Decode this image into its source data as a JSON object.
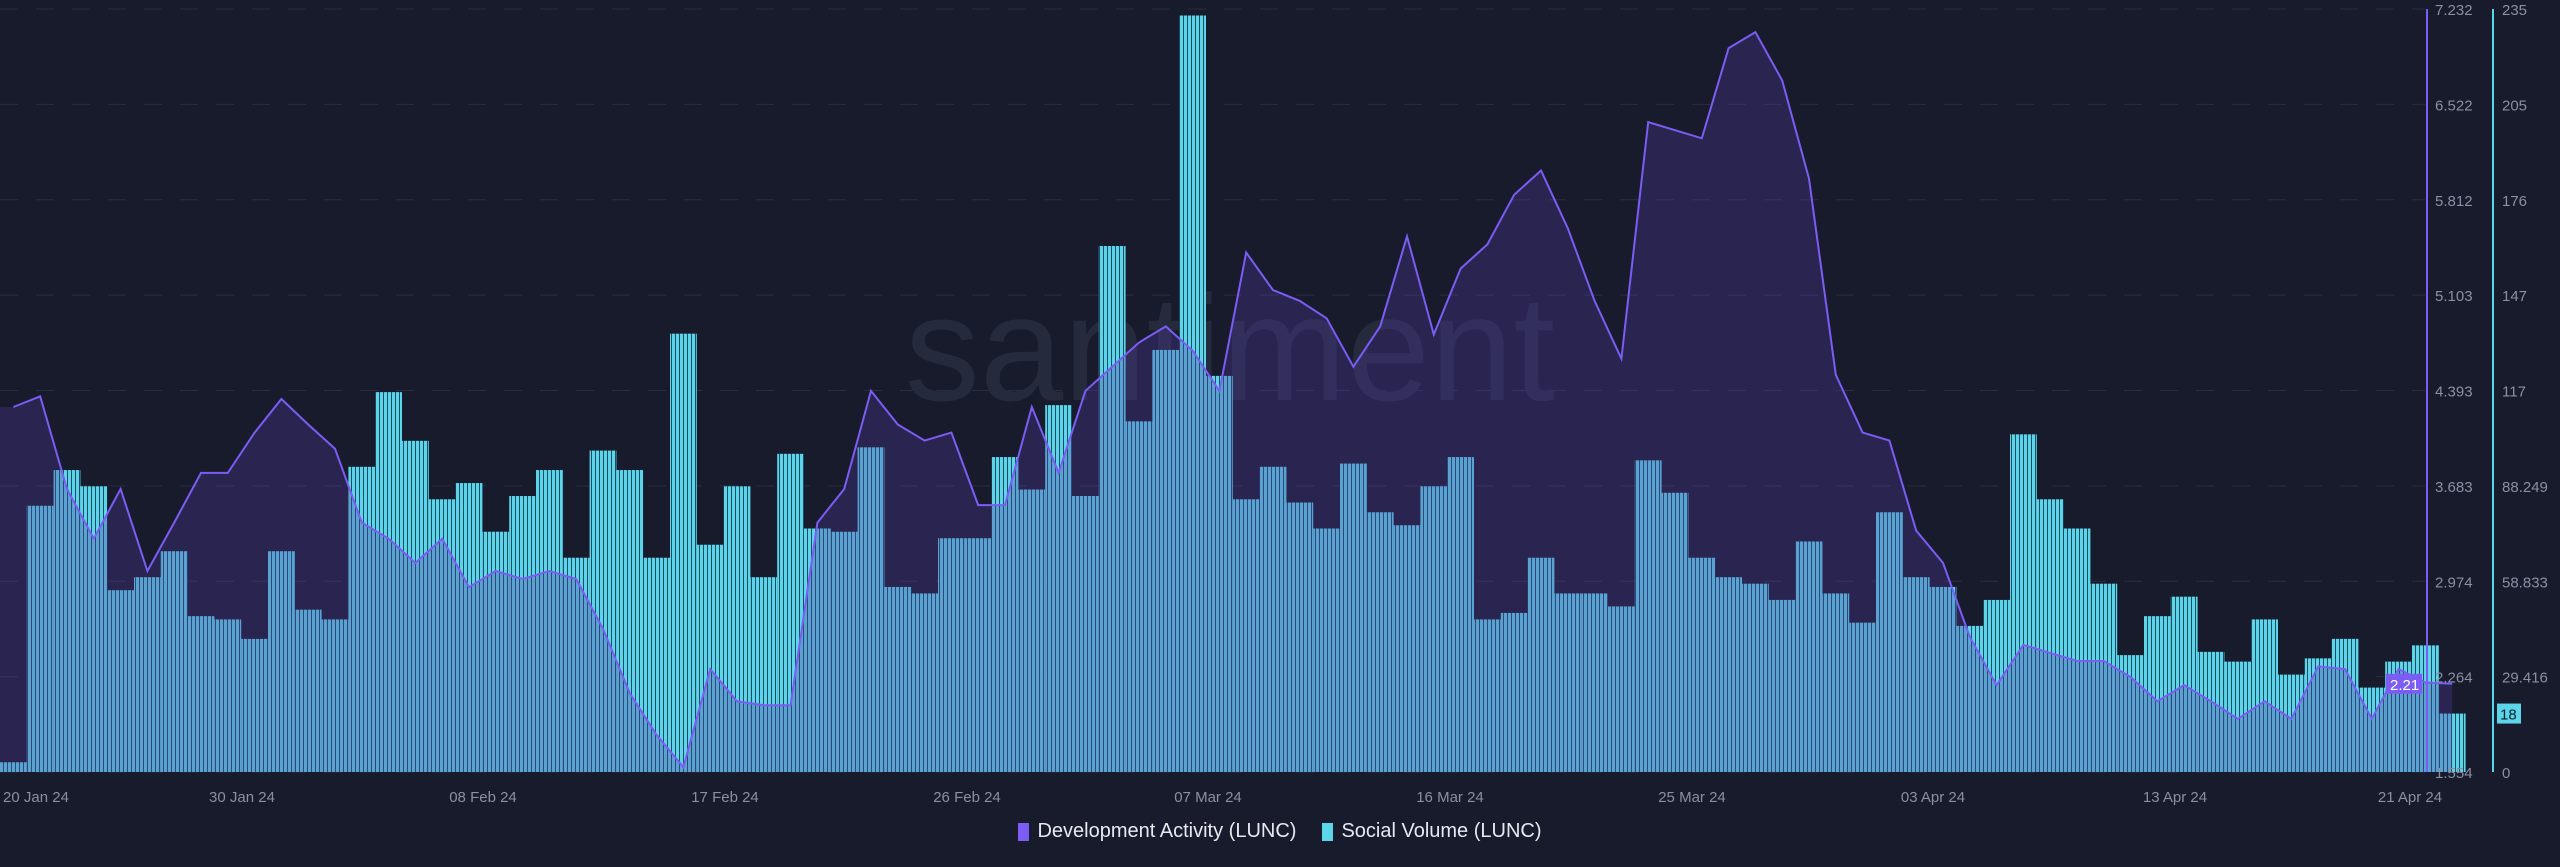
{
  "watermark": "santiment",
  "chart_data": {
    "type": "bar+area",
    "x_tick_labels": [
      "20 Jan 24",
      "30 Jan 24",
      "08 Feb 24",
      "17 Feb 24",
      "26 Feb 24",
      "07 Mar 24",
      "16 Mar 24",
      "25 Mar 24",
      "03 Apr 24",
      "13 Apr 24",
      "21 Apr 24"
    ],
    "y_left": {
      "ticks": [
        "7.232",
        "6.522",
        "5.812",
        "5.103",
        "4.393",
        "3.683",
        "2.974",
        "2.264",
        "1.554"
      ],
      "range": [
        1.554,
        7.232
      ],
      "color": "#7b5cf5"
    },
    "y_right": {
      "ticks": [
        "235",
        "205",
        "176",
        "147",
        "117",
        "88.249",
        "58.833",
        "29.416",
        "0"
      ],
      "range": [
        0,
        235
      ],
      "color": "#5cd4ea"
    },
    "grid": true,
    "legend_placement": "bottom",
    "series": [
      {
        "name": "Development Activity (LUNC)",
        "type": "area",
        "color": "#7b5cf5",
        "axis": "left",
        "last_value": "2.21",
        "values": [
          4.27,
          4.35,
          3.66,
          3.29,
          3.66,
          3.05,
          3.41,
          3.78,
          3.78,
          4.08,
          4.33,
          4.14,
          3.96,
          3.41,
          3.29,
          3.11,
          3.29,
          2.93,
          3.05,
          2.99,
          3.05,
          2.99,
          2.62,
          2.14,
          1.83,
          1.59,
          2.32,
          2.08,
          2.05,
          2.05,
          3.41,
          3.66,
          4.39,
          4.14,
          4.02,
          4.08,
          3.54,
          3.54,
          4.27,
          3.78,
          4.39,
          4.57,
          4.75,
          4.87,
          4.69,
          4.39,
          5.42,
          5.14,
          5.06,
          4.93,
          4.57,
          4.87,
          5.54,
          4.81,
          5.3,
          5.48,
          5.85,
          6.03,
          5.6,
          5.06,
          4.63,
          6.39,
          6.33,
          6.27,
          6.94,
          7.06,
          6.7,
          5.97,
          4.51,
          4.08,
          4.02,
          3.35,
          3.11,
          2.56,
          2.2,
          2.5,
          2.44,
          2.38,
          2.38,
          2.26,
          2.08,
          2.2,
          2.08,
          1.95,
          2.08,
          1.95,
          2.34,
          2.32,
          1.95,
          2.32,
          2.22,
          2.21
        ]
      },
      {
        "name": "Social Volume (LUNC)",
        "type": "bar",
        "color": "#5cd4ea",
        "axis": "right",
        "last_value": "18",
        "values": [
          3,
          82,
          93,
          88,
          56,
          60,
          68,
          48,
          47,
          41,
          68,
          50,
          47,
          94,
          117,
          102,
          84,
          89,
          74,
          85,
          93,
          66,
          99,
          93,
          66,
          135,
          70,
          88,
          60,
          98,
          75,
          74,
          100,
          57,
          55,
          72,
          72,
          97,
          87,
          113,
          85,
          162,
          108,
          130,
          233,
          122,
          84,
          94,
          83,
          75,
          95,
          80,
          76,
          88,
          97,
          47,
          49,
          66,
          55,
          55,
          51,
          96,
          86,
          66,
          60,
          58,
          53,
          71,
          55,
          46,
          80,
          60,
          57,
          45,
          53,
          104,
          84,
          75,
          58,
          36,
          48,
          54,
          37,
          34,
          47,
          30,
          35,
          41,
          26,
          34,
          39,
          18
        ]
      }
    ]
  }
}
